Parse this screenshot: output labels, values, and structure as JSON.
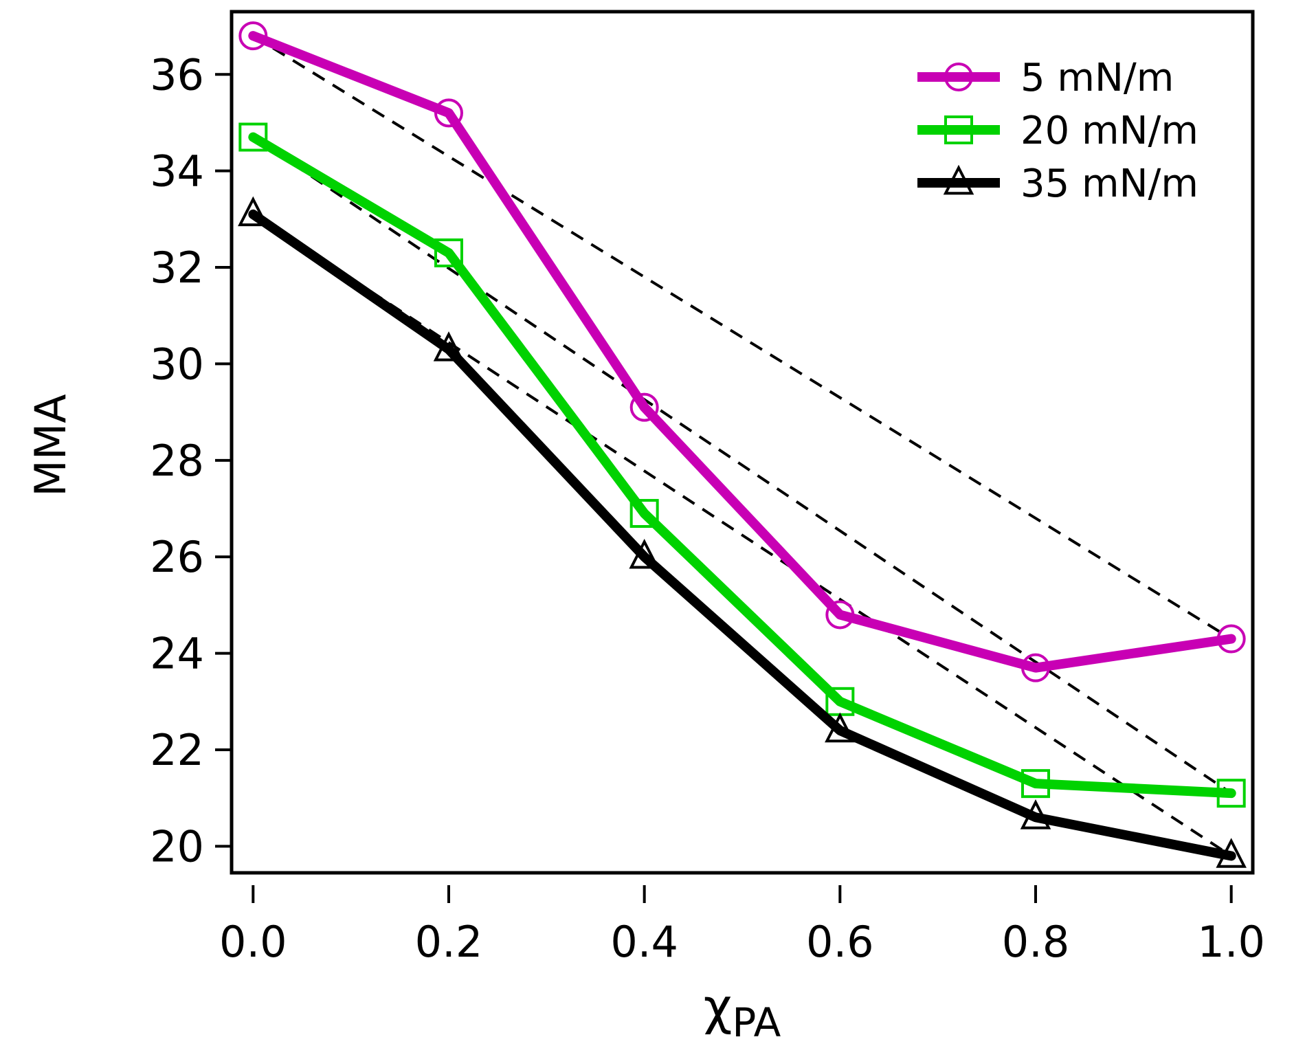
{
  "chart_data": {
    "type": "line",
    "xlabel_main": "χ",
    "xlabel_sub": "PA",
    "ylabel": "MMA",
    "x": [
      0.0,
      0.2,
      0.4,
      0.6,
      0.8,
      1.0
    ],
    "xticks": [
      "0.0",
      "0.2",
      "0.4",
      "0.6",
      "0.8",
      "1.0"
    ],
    "yticks": [
      "20",
      "22",
      "24",
      "26",
      "28",
      "30",
      "32",
      "34",
      "36"
    ],
    "xlim": [
      -0.022,
      1.022
    ],
    "ylim": [
      19.45,
      37.3
    ],
    "grid": false,
    "legend_position": "top-right",
    "series": [
      {
        "name": "5 mN/m",
        "color": "#c800b4",
        "marker": "circle",
        "values": [
          36.8,
          35.2,
          29.1,
          24.8,
          23.7,
          24.3
        ]
      },
      {
        "name": "20 mN/m",
        "color": "#00d200",
        "marker": "square",
        "values": [
          34.7,
          32.3,
          26.9,
          23.0,
          21.3,
          21.1
        ]
      },
      {
        "name": "35 mN/m",
        "color": "#000000",
        "marker": "triangle",
        "values": [
          33.1,
          30.3,
          26.0,
          22.4,
          20.6,
          19.8
        ]
      }
    ],
    "ideal_lines": [
      {
        "style": "dashed",
        "x": [
          0.0,
          1.0
        ],
        "values": [
          36.8,
          24.3
        ]
      },
      {
        "style": "dashed",
        "x": [
          0.0,
          1.0
        ],
        "values": [
          34.7,
          21.1
        ]
      },
      {
        "style": "dashed",
        "x": [
          0.0,
          1.0
        ],
        "values": [
          33.1,
          19.8
        ]
      }
    ]
  }
}
